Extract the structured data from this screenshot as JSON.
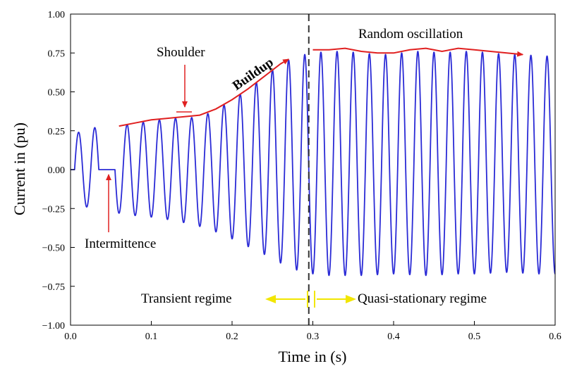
{
  "chart_data": {
    "type": "line",
    "title": "",
    "xlabel": "Time in (s)",
    "ylabel": "Current in (pu)",
    "xlim": [
      0.0,
      0.6
    ],
    "ylim": [
      -1.0,
      1.0
    ],
    "x_ticks": [
      "0.0",
      "0.1",
      "0.2",
      "0.3",
      "0.4",
      "0.5",
      "0.6"
    ],
    "y_ticks": [
      "1.00",
      "0.75",
      "0.50",
      "0.25",
      "0.00",
      "−0.25",
      "−0.50",
      "−0.75",
      "−1.00"
    ],
    "grid": false,
    "series": [
      {
        "color": "#2b2bd6",
        "frequency_hz": 50,
        "start_time": 0.005,
        "gap": [
          0.035,
          0.055
        ],
        "positive_peaks": [
          [
            0.01,
            0.24
          ],
          [
            0.03,
            0.27
          ],
          [
            0.06,
            0.28
          ],
          [
            0.08,
            0.3
          ],
          [
            0.1,
            0.31
          ],
          [
            0.12,
            0.33
          ],
          [
            0.14,
            0.33
          ],
          [
            0.16,
            0.34
          ],
          [
            0.18,
            0.38
          ],
          [
            0.2,
            0.45
          ],
          [
            0.22,
            0.52
          ],
          [
            0.24,
            0.6
          ],
          [
            0.26,
            0.68
          ],
          [
            0.28,
            0.73
          ],
          [
            0.3,
            0.75
          ],
          [
            0.32,
            0.76
          ],
          [
            0.34,
            0.76
          ],
          [
            0.36,
            0.75
          ],
          [
            0.38,
            0.74
          ],
          [
            0.4,
            0.74
          ],
          [
            0.42,
            0.76
          ],
          [
            0.44,
            0.76
          ],
          [
            0.46,
            0.75
          ],
          [
            0.48,
            0.76
          ],
          [
            0.5,
            0.76
          ],
          [
            0.52,
            0.75
          ],
          [
            0.54,
            0.74
          ],
          [
            0.56,
            0.74
          ],
          [
            0.58,
            0.73
          ],
          [
            0.6,
            0.73
          ]
        ],
        "negative_peaks": [
          [
            0.02,
            -0.24
          ],
          [
            0.05,
            -0.27
          ],
          [
            0.07,
            -0.29
          ],
          [
            0.09,
            -0.3
          ],
          [
            0.11,
            -0.31
          ],
          [
            0.13,
            -0.33
          ],
          [
            0.15,
            -0.35
          ],
          [
            0.17,
            -0.38
          ],
          [
            0.19,
            -0.42
          ],
          [
            0.21,
            -0.47
          ],
          [
            0.23,
            -0.52
          ],
          [
            0.25,
            -0.57
          ],
          [
            0.27,
            -0.63
          ],
          [
            0.29,
            -0.66
          ],
          [
            0.31,
            -0.68
          ],
          [
            0.33,
            -0.68
          ],
          [
            0.35,
            -0.68
          ],
          [
            0.37,
            -0.68
          ],
          [
            0.39,
            -0.67
          ],
          [
            0.41,
            -0.67
          ],
          [
            0.43,
            -0.68
          ],
          [
            0.45,
            -0.68
          ],
          [
            0.47,
            -0.67
          ],
          [
            0.49,
            -0.67
          ],
          [
            0.51,
            -0.67
          ],
          [
            0.53,
            -0.66
          ],
          [
            0.55,
            -0.66
          ],
          [
            0.57,
            -0.67
          ],
          [
            0.59,
            -0.67
          ]
        ]
      }
    ],
    "separator_x": 0.295,
    "envelope_curves": [
      {
        "color": "#e02020",
        "points": [
          [
            0.06,
            0.28
          ],
          [
            0.08,
            0.3
          ],
          [
            0.1,
            0.32
          ],
          [
            0.12,
            0.33
          ],
          [
            0.14,
            0.34
          ],
          [
            0.16,
            0.35
          ],
          [
            0.18,
            0.39
          ],
          [
            0.2,
            0.45
          ],
          [
            0.22,
            0.52
          ],
          [
            0.24,
            0.6
          ],
          [
            0.26,
            0.68
          ],
          [
            0.27,
            0.71
          ]
        ]
      },
      {
        "color": "#e02020",
        "points": [
          [
            0.3,
            0.77
          ],
          [
            0.32,
            0.77
          ],
          [
            0.34,
            0.78
          ],
          [
            0.36,
            0.76
          ],
          [
            0.38,
            0.75
          ],
          [
            0.4,
            0.75
          ],
          [
            0.42,
            0.77
          ],
          [
            0.44,
            0.78
          ],
          [
            0.46,
            0.76
          ],
          [
            0.48,
            0.78
          ],
          [
            0.5,
            0.77
          ],
          [
            0.52,
            0.76
          ],
          [
            0.54,
            0.75
          ],
          [
            0.56,
            0.74
          ]
        ]
      }
    ],
    "annotations": {
      "shoulder": "Shoulder",
      "buildup": "Buildup",
      "random": "Random oscillation",
      "intermittence": "Intermittence",
      "transient": "Transient regime",
      "quasi": "Quasi-stationary regime"
    },
    "colors": {
      "signal": "#2b2bd6",
      "envelope": "#e02020",
      "regime_arrow": "#f2e600",
      "separator": "#333333"
    }
  }
}
